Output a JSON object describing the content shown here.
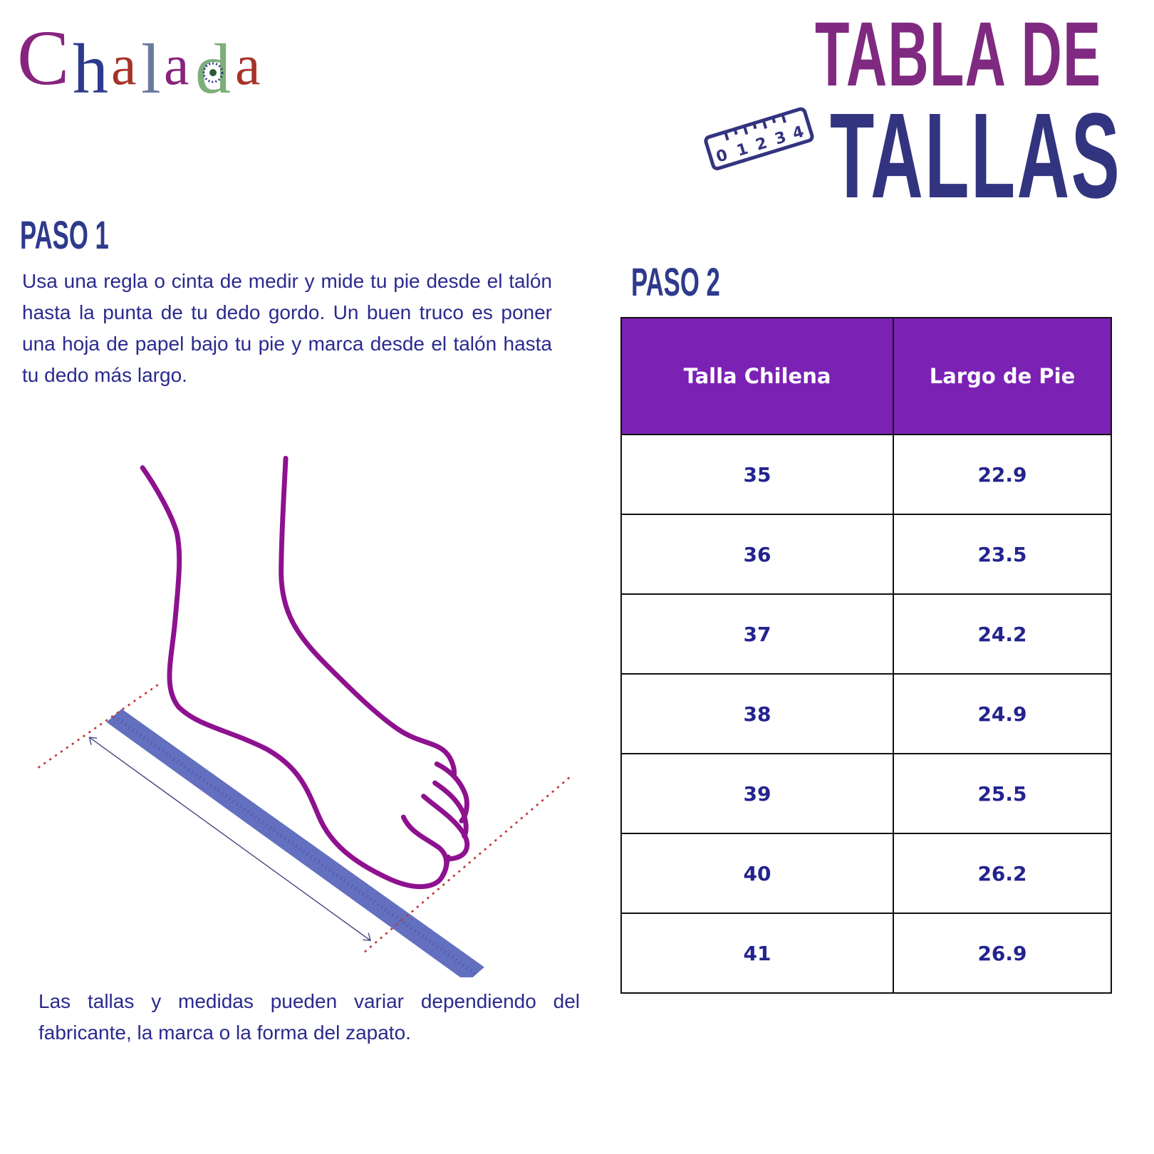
{
  "logo": {
    "text": "Chalada",
    "letters": [
      "C",
      "h",
      "a",
      "l",
      "a",
      "d",
      "a"
    ],
    "colors": [
      "#86247e",
      "#2e3a8c",
      "#a6332a",
      "#6d7aa0",
      "#86247e",
      "#7fae7a",
      "#a6332a"
    ]
  },
  "title": {
    "line1": "TABLA DE",
    "line2": "TALLAS",
    "ruler_digits": [
      "0",
      "1",
      "2",
      "3",
      "4"
    ]
  },
  "step1": {
    "heading": "PASO 1",
    "text": "Usa una regla o cinta de medir y mide tu pie desde el talón hasta la punta de tu dedo gordo. Un buen truco es poner una hoja de papel bajo tu pie y marca desde el talón hasta tu dedo más largo."
  },
  "note": "Las tallas y medidas pueden variar dependiendo del fabricante, la marca o la forma del zapato.",
  "step2": {
    "heading": "PASO 2",
    "table": {
      "headers": [
        "Talla Chilena",
        "Largo de Pie"
      ],
      "rows": [
        [
          "35",
          "22.9"
        ],
        [
          "36",
          "23.5"
        ],
        [
          "37",
          "24.2"
        ],
        [
          "38",
          "24.9"
        ],
        [
          "39",
          "25.5"
        ],
        [
          "40",
          "26.2"
        ],
        [
          "41",
          "26.9"
        ]
      ]
    }
  },
  "colors": {
    "header_bg": "#7b22b5",
    "text": "#23238f",
    "foot": "#8e118f",
    "ruler": "#6370bf",
    "guide": "#c0393b"
  }
}
